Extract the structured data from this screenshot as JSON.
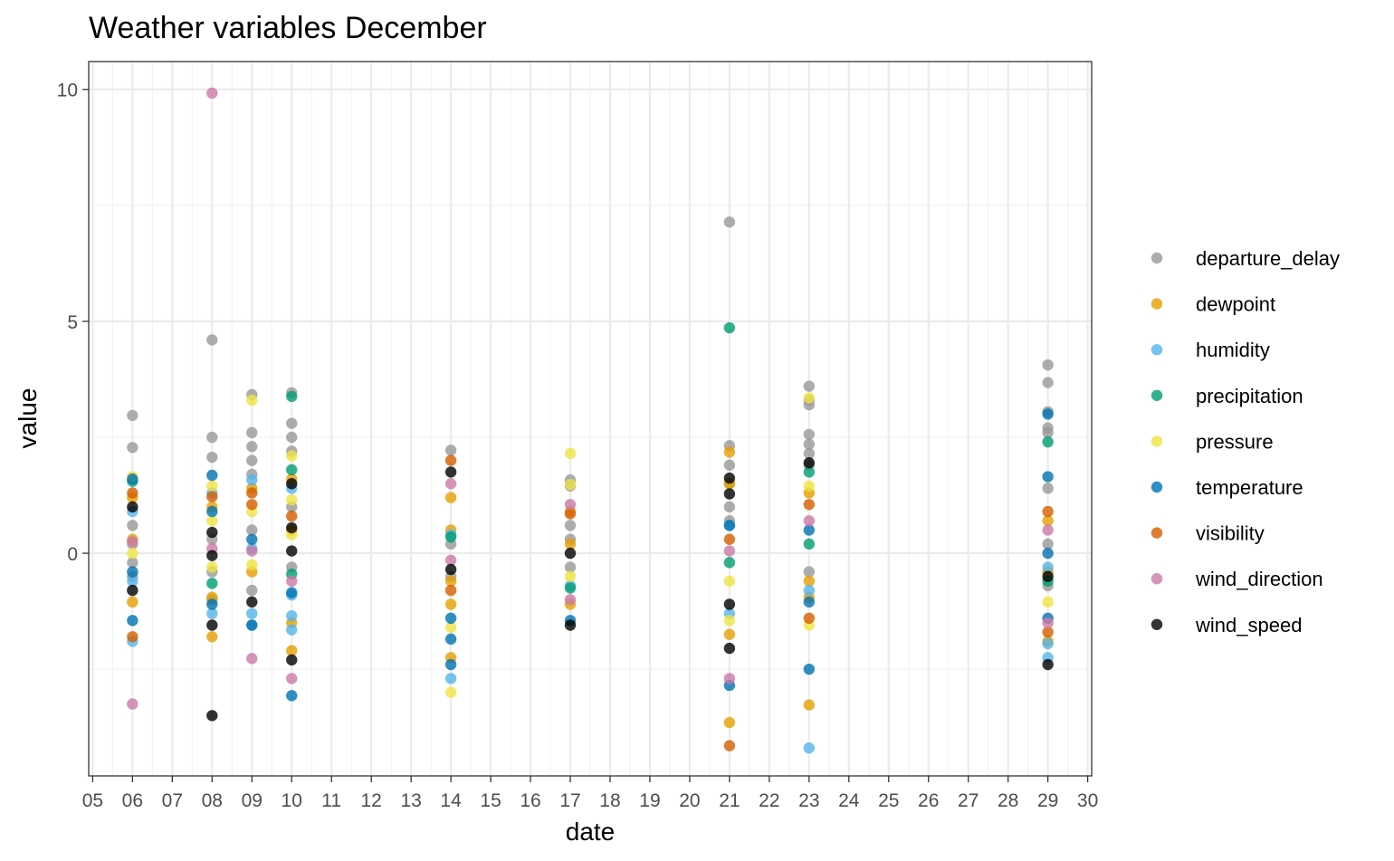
{
  "chart_data": {
    "type": "scatter",
    "title": "Weather variables December",
    "xlabel": "date",
    "ylabel": "value",
    "x_ticks": [
      "05",
      "06",
      "07",
      "08",
      "09",
      "10",
      "11",
      "12",
      "13",
      "14",
      "15",
      "16",
      "17",
      "18",
      "19",
      "20",
      "21",
      "22",
      "23",
      "24",
      "25",
      "26",
      "27",
      "28",
      "29",
      "30"
    ],
    "y_ticks": [
      0,
      5,
      10
    ],
    "xlim": [
      4.9,
      30.1
    ],
    "ylim": [
      -4.8,
      10.6
    ],
    "grid": true,
    "legend_position": "right",
    "series": [
      {
        "name": "departure_delay",
        "color": "#999999",
        "points": [
          {
            "x": 6,
            "y": 2.97
          },
          {
            "x": 6,
            "y": 2.28
          },
          {
            "x": 6,
            "y": 0.6
          },
          {
            "x": 6,
            "y": 0.2
          },
          {
            "x": 6,
            "y": -0.2
          },
          {
            "x": 6,
            "y": -0.5
          },
          {
            "x": 8,
            "y": 4.6
          },
          {
            "x": 8,
            "y": 2.5
          },
          {
            "x": 8,
            "y": 2.07
          },
          {
            "x": 8,
            "y": 0.3
          },
          {
            "x": 8,
            "y": -0.4
          },
          {
            "x": 8,
            "y": -1.0
          },
          {
            "x": 9,
            "y": 3.42
          },
          {
            "x": 9,
            "y": 2.6
          },
          {
            "x": 9,
            "y": 2.3
          },
          {
            "x": 9,
            "y": 2.0
          },
          {
            "x": 9,
            "y": 1.7
          },
          {
            "x": 9,
            "y": 0.5
          },
          {
            "x": 9,
            "y": -0.8
          },
          {
            "x": 10,
            "y": 3.46
          },
          {
            "x": 10,
            "y": 2.8
          },
          {
            "x": 10,
            "y": 2.5
          },
          {
            "x": 10,
            "y": 2.2
          },
          {
            "x": 10,
            "y": 1.0
          },
          {
            "x": 10,
            "y": -0.3
          },
          {
            "x": 14,
            "y": 2.22
          },
          {
            "x": 14,
            "y": 0.2
          },
          {
            "x": 14,
            "y": -0.5
          },
          {
            "x": 17,
            "y": 1.58
          },
          {
            "x": 17,
            "y": 1.45
          },
          {
            "x": 17,
            "y": 0.6
          },
          {
            "x": 17,
            "y": 0.3
          },
          {
            "x": 17,
            "y": -0.3
          },
          {
            "x": 21,
            "y": 7.14
          },
          {
            "x": 21,
            "y": 2.32
          },
          {
            "x": 21,
            "y": 1.9
          },
          {
            "x": 21,
            "y": 1.5
          },
          {
            "x": 21,
            "y": 1.0
          },
          {
            "x": 21,
            "y": 0.7
          },
          {
            "x": 23,
            "y": 3.6
          },
          {
            "x": 23,
            "y": 3.3
          },
          {
            "x": 23,
            "y": 3.2
          },
          {
            "x": 23,
            "y": 2.56
          },
          {
            "x": 23,
            "y": 2.35
          },
          {
            "x": 23,
            "y": 2.15
          },
          {
            "x": 23,
            "y": 1.9
          },
          {
            "x": 23,
            "y": -0.4
          },
          {
            "x": 29,
            "y": 4.06
          },
          {
            "x": 29,
            "y": 3.68
          },
          {
            "x": 29,
            "y": 3.05
          },
          {
            "x": 29,
            "y": 2.7
          },
          {
            "x": 29,
            "y": 2.6
          },
          {
            "x": 29,
            "y": 1.4
          },
          {
            "x": 29,
            "y": 0.2
          },
          {
            "x": 29,
            "y": -0.7
          }
        ]
      },
      {
        "name": "dewpoint",
        "color": "#E69F00",
        "points": [
          {
            "x": 6,
            "y": 1.2
          },
          {
            "x": 6,
            "y": 0.3
          },
          {
            "x": 6,
            "y": -1.05
          },
          {
            "x": 8,
            "y": 1.0
          },
          {
            "x": 8,
            "y": -0.95
          },
          {
            "x": 8,
            "y": -1.8
          },
          {
            "x": 9,
            "y": 1.4
          },
          {
            "x": 9,
            "y": -0.4
          },
          {
            "x": 10,
            "y": 1.6
          },
          {
            "x": 10,
            "y": 0.5
          },
          {
            "x": 10,
            "y": -1.5
          },
          {
            "x": 10,
            "y": -2.1
          },
          {
            "x": 14,
            "y": 1.2
          },
          {
            "x": 14,
            "y": 0.5
          },
          {
            "x": 14,
            "y": -0.6
          },
          {
            "x": 14,
            "y": -1.1
          },
          {
            "x": 14,
            "y": -2.25
          },
          {
            "x": 17,
            "y": 0.9
          },
          {
            "x": 17,
            "y": 0.2
          },
          {
            "x": 17,
            "y": -1.1
          },
          {
            "x": 21,
            "y": 2.18
          },
          {
            "x": 21,
            "y": 1.5
          },
          {
            "x": 21,
            "y": -1.75
          },
          {
            "x": 21,
            "y": -3.65
          },
          {
            "x": 23,
            "y": 1.3
          },
          {
            "x": 23,
            "y": -0.6
          },
          {
            "x": 23,
            "y": -0.95
          },
          {
            "x": 23,
            "y": -3.27
          },
          {
            "x": 29,
            "y": 0.7
          },
          {
            "x": 29,
            "y": -0.4
          },
          {
            "x": 29,
            "y": -1.9
          }
        ]
      },
      {
        "name": "humidity",
        "color": "#56B4E9",
        "points": [
          {
            "x": 6,
            "y": 0.9
          },
          {
            "x": 6,
            "y": -0.6
          },
          {
            "x": 6,
            "y": -1.9
          },
          {
            "x": 8,
            "y": 1.3
          },
          {
            "x": 8,
            "y": -1.3
          },
          {
            "x": 9,
            "y": 1.58
          },
          {
            "x": 9,
            "y": 0.1
          },
          {
            "x": 9,
            "y": -1.3
          },
          {
            "x": 9,
            "y": -1.55
          },
          {
            "x": 10,
            "y": 1.4
          },
          {
            "x": 10,
            "y": -0.9
          },
          {
            "x": 10,
            "y": -1.35
          },
          {
            "x": 10,
            "y": -1.65
          },
          {
            "x": 14,
            "y": 0.4
          },
          {
            "x": 14,
            "y": -2.7
          },
          {
            "x": 17,
            "y": -0.7
          },
          {
            "x": 21,
            "y": 0.6
          },
          {
            "x": 21,
            "y": -1.3
          },
          {
            "x": 23,
            "y": -0.8
          },
          {
            "x": 23,
            "y": -4.2
          },
          {
            "x": 29,
            "y": -0.3
          },
          {
            "x": 29,
            "y": -1.95
          },
          {
            "x": 29,
            "y": -2.25
          }
        ]
      },
      {
        "name": "precipitation",
        "color": "#009E73",
        "points": [
          {
            "x": 6,
            "y": 1.55
          },
          {
            "x": 8,
            "y": -0.65
          },
          {
            "x": 10,
            "y": 3.38
          },
          {
            "x": 10,
            "y": 1.8
          },
          {
            "x": 10,
            "y": -0.45
          },
          {
            "x": 14,
            "y": 0.35
          },
          {
            "x": 17,
            "y": -0.75
          },
          {
            "x": 21,
            "y": 4.86
          },
          {
            "x": 21,
            "y": -0.2
          },
          {
            "x": 23,
            "y": 1.75
          },
          {
            "x": 23,
            "y": 0.2
          },
          {
            "x": 29,
            "y": 2.4
          },
          {
            "x": 29,
            "y": -0.6
          }
        ]
      },
      {
        "name": "pressure",
        "color": "#F0E442",
        "points": [
          {
            "x": 6,
            "y": 1.65
          },
          {
            "x": 6,
            "y": 0.0
          },
          {
            "x": 8,
            "y": 1.45
          },
          {
            "x": 8,
            "y": 0.7
          },
          {
            "x": 8,
            "y": -0.3
          },
          {
            "x": 9,
            "y": 3.3
          },
          {
            "x": 9,
            "y": 0.9
          },
          {
            "x": 9,
            "y": -0.25
          },
          {
            "x": 10,
            "y": 2.1
          },
          {
            "x": 10,
            "y": 1.15
          },
          {
            "x": 10,
            "y": 0.4
          },
          {
            "x": 14,
            "y": -1.6
          },
          {
            "x": 14,
            "y": -3.0
          },
          {
            "x": 17,
            "y": 2.15
          },
          {
            "x": 17,
            "y": 1.48
          },
          {
            "x": 17,
            "y": -0.5
          },
          {
            "x": 21,
            "y": -0.6
          },
          {
            "x": 21,
            "y": -1.45
          },
          {
            "x": 23,
            "y": 3.35
          },
          {
            "x": 23,
            "y": 1.45
          },
          {
            "x": 23,
            "y": -1.55
          },
          {
            "x": 29,
            "y": -1.05
          }
        ]
      },
      {
        "name": "temperature",
        "color": "#0072B2",
        "points": [
          {
            "x": 6,
            "y": 1.6
          },
          {
            "x": 6,
            "y": -0.4
          },
          {
            "x": 6,
            "y": -1.45
          },
          {
            "x": 8,
            "y": 1.68
          },
          {
            "x": 8,
            "y": 0.9
          },
          {
            "x": 8,
            "y": -1.1
          },
          {
            "x": 9,
            "y": 0.3
          },
          {
            "x": 9,
            "y": -1.55
          },
          {
            "x": 10,
            "y": -0.85
          },
          {
            "x": 10,
            "y": -3.07
          },
          {
            "x": 14,
            "y": -1.4
          },
          {
            "x": 14,
            "y": -1.85
          },
          {
            "x": 14,
            "y": -2.4
          },
          {
            "x": 17,
            "y": -1.45
          },
          {
            "x": 21,
            "y": 0.6
          },
          {
            "x": 21,
            "y": -2.85
          },
          {
            "x": 23,
            "y": 0.5
          },
          {
            "x": 23,
            "y": -1.05
          },
          {
            "x": 23,
            "y": -2.5
          },
          {
            "x": 29,
            "y": 3.0
          },
          {
            "x": 29,
            "y": 1.65
          },
          {
            "x": 29,
            "y": 0.0
          },
          {
            "x": 29,
            "y": -1.4
          }
        ]
      },
      {
        "name": "visibility",
        "color": "#D55E00",
        "points": [
          {
            "x": 6,
            "y": 1.3
          },
          {
            "x": 6,
            "y": -1.8
          },
          {
            "x": 8,
            "y": 1.22
          },
          {
            "x": 9,
            "y": 1.3
          },
          {
            "x": 9,
            "y": 1.05
          },
          {
            "x": 10,
            "y": 0.8
          },
          {
            "x": 14,
            "y": 2.0
          },
          {
            "x": 14,
            "y": -0.8
          },
          {
            "x": 17,
            "y": 0.85
          },
          {
            "x": 21,
            "y": 0.3
          },
          {
            "x": 21,
            "y": -4.15
          },
          {
            "x": 23,
            "y": 1.05
          },
          {
            "x": 23,
            "y": -1.4
          },
          {
            "x": 29,
            "y": 0.9
          },
          {
            "x": 29,
            "y": -1.7
          }
        ]
      },
      {
        "name": "wind_direction",
        "color": "#CC79A7",
        "points": [
          {
            "x": 6,
            "y": -3.25
          },
          {
            "x": 6,
            "y": 0.25
          },
          {
            "x": 8,
            "y": 9.92
          },
          {
            "x": 8,
            "y": 0.1
          },
          {
            "x": 9,
            "y": -2.27
          },
          {
            "x": 9,
            "y": 0.05
          },
          {
            "x": 10,
            "y": -2.7
          },
          {
            "x": 10,
            "y": -0.6
          },
          {
            "x": 14,
            "y": 1.5
          },
          {
            "x": 14,
            "y": -0.15
          },
          {
            "x": 17,
            "y": 1.05
          },
          {
            "x": 17,
            "y": -1.0
          },
          {
            "x": 21,
            "y": -2.7
          },
          {
            "x": 21,
            "y": 0.05
          },
          {
            "x": 23,
            "y": 0.7
          },
          {
            "x": 29,
            "y": 0.5
          },
          {
            "x": 29,
            "y": -1.5
          }
        ]
      },
      {
        "name": "wind_speed",
        "color": "#000000",
        "points": [
          {
            "x": 6,
            "y": 1.0
          },
          {
            "x": 6,
            "y": -0.8
          },
          {
            "x": 8,
            "y": 0.45
          },
          {
            "x": 8,
            "y": -0.05
          },
          {
            "x": 8,
            "y": -1.55
          },
          {
            "x": 8,
            "y": -3.5
          },
          {
            "x": 9,
            "y": -1.05
          },
          {
            "x": 10,
            "y": 1.5
          },
          {
            "x": 10,
            "y": 0.55
          },
          {
            "x": 10,
            "y": 0.05
          },
          {
            "x": 10,
            "y": -2.3
          },
          {
            "x": 14,
            "y": 1.75
          },
          {
            "x": 14,
            "y": -0.35
          },
          {
            "x": 17,
            "y": 0.0
          },
          {
            "x": 17,
            "y": -1.55
          },
          {
            "x": 21,
            "y": 1.62
          },
          {
            "x": 21,
            "y": 1.28
          },
          {
            "x": 21,
            "y": -1.1
          },
          {
            "x": 21,
            "y": -2.05
          },
          {
            "x": 23,
            "y": 1.95
          },
          {
            "x": 29,
            "y": -0.5
          },
          {
            "x": 29,
            "y": -2.4
          }
        ]
      }
    ]
  }
}
